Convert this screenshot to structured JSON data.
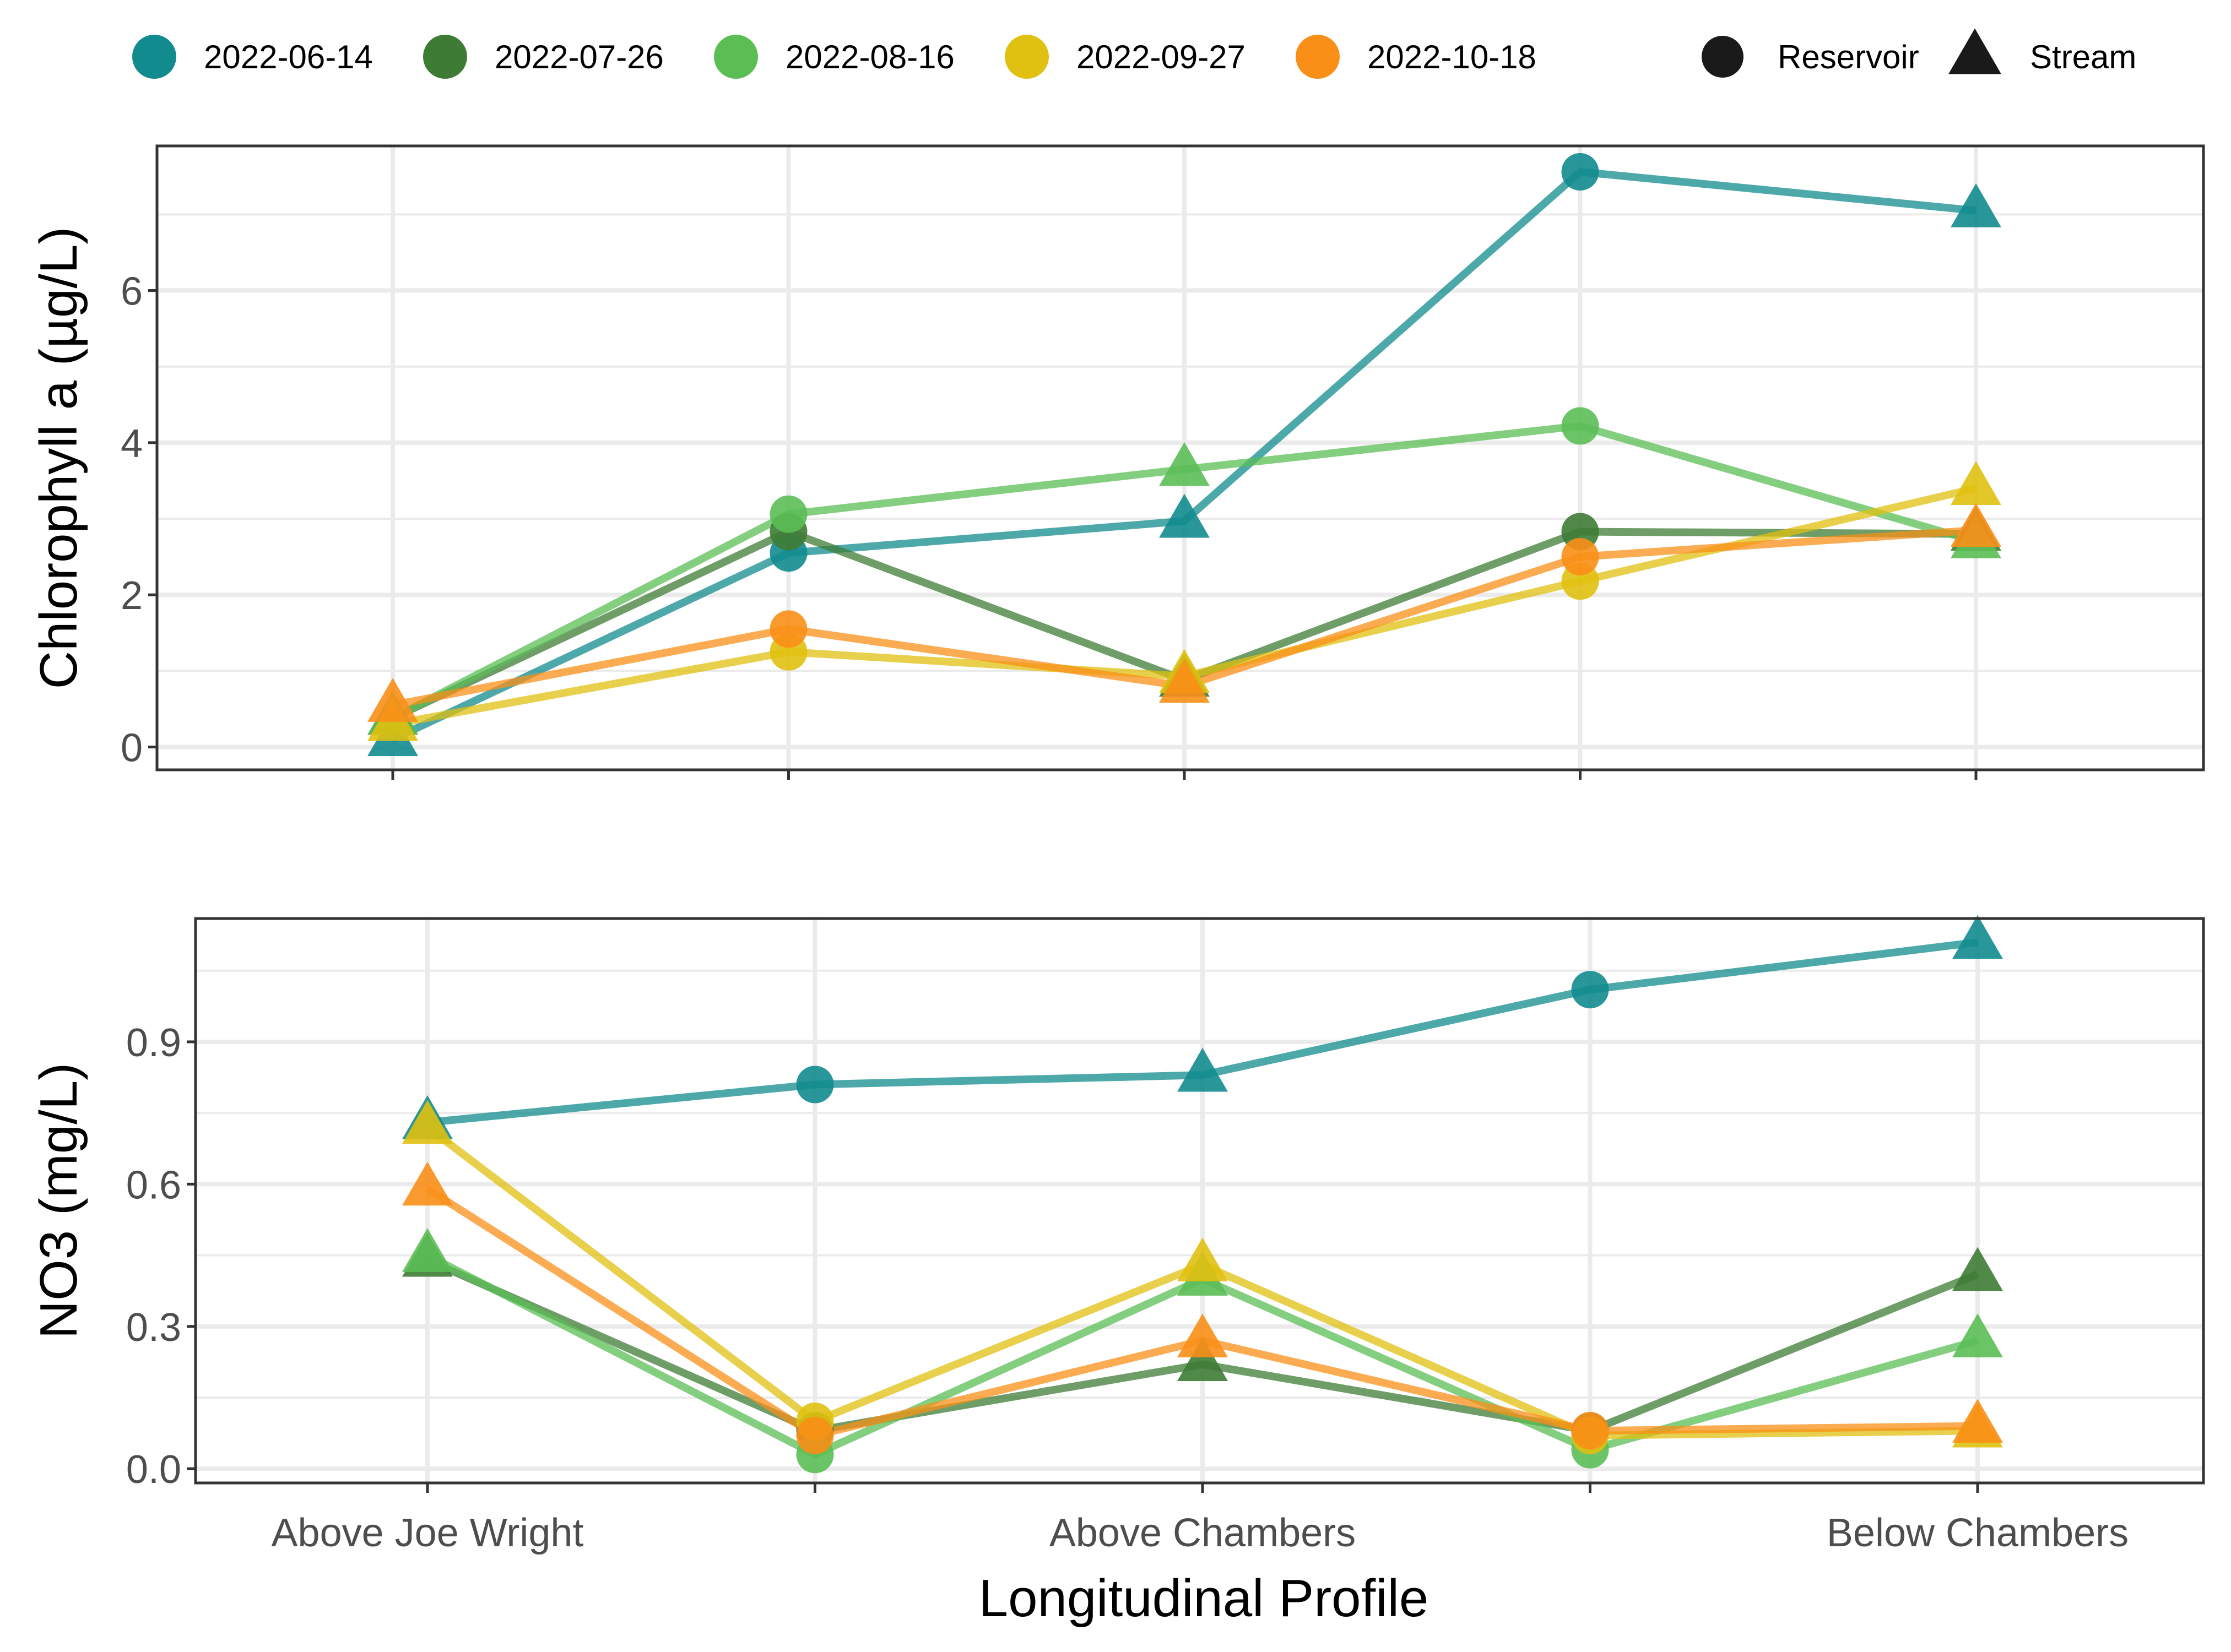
{
  "legend": {
    "dates": [
      {
        "label": "2022-06-14",
        "color": "#128B8E"
      },
      {
        "label": "2022-07-26",
        "color": "#3E7C35"
      },
      {
        "label": "2022-08-16",
        "color": "#5BBE55"
      },
      {
        "label": "2022-09-27",
        "color": "#E0C010"
      },
      {
        "label": "2022-10-18",
        "color": "#FA8F17"
      }
    ],
    "shapes": [
      {
        "label": "Reservoir",
        "shape": "circle"
      },
      {
        "label": "Stream",
        "shape": "triangle"
      }
    ]
  },
  "chart_data": [
    {
      "type": "line",
      "ylabel": "Chlorophyll a (µg/L)",
      "ylim": [
        -0.3,
        7.9
      ],
      "yticks": [
        0,
        2,
        4,
        6
      ],
      "ytick_labels": [
        "0",
        "2",
        "4",
        "6"
      ],
      "grid": true,
      "x_positions": 5,
      "point_shapes": [
        "triangle",
        "circle",
        "triangle",
        "circle",
        "triangle"
      ],
      "series": [
        {
          "name": "2022-06-14",
          "color": "#128B8E",
          "values": [
            0.1,
            2.55,
            2.97,
            7.56,
            7.05
          ]
        },
        {
          "name": "2022-07-26",
          "color": "#3E7C35",
          "values": [
            0.38,
            2.83,
            0.88,
            2.83,
            2.8
          ]
        },
        {
          "name": "2022-08-16",
          "color": "#5BBE55",
          "values": [
            0.38,
            3.06,
            3.65,
            4.22,
            2.7
          ]
        },
        {
          "name": "2022-09-27",
          "color": "#E0C010",
          "values": [
            0.3,
            1.25,
            0.93,
            2.18,
            3.4
          ]
        },
        {
          "name": "2022-10-18",
          "color": "#FA8F17",
          "values": [
            0.55,
            1.55,
            0.8,
            2.5,
            2.85
          ]
        }
      ]
    },
    {
      "type": "line",
      "ylabel": "NO3 (mg/L)",
      "xlabel": "Longitudinal Profile",
      "ylim": [
        -0.03,
        1.16
      ],
      "yticks": [
        0.0,
        0.3,
        0.6,
        0.9
      ],
      "ytick_labels": [
        "0.0",
        "0.3",
        "0.6",
        "0.9"
      ],
      "grid": true,
      "x_positions": 5,
      "x_tick_labels": [
        "Above Joe Wright",
        "",
        "Above Chambers",
        "",
        "Below Chambers"
      ],
      "point_shapes": [
        "triangle",
        "circle",
        "triangle",
        "circle",
        "triangle"
      ],
      "series": [
        {
          "name": "2022-06-14",
          "color": "#128B8E",
          "values": [
            0.73,
            0.81,
            0.83,
            1.01,
            1.11
          ]
        },
        {
          "name": "2022-07-26",
          "color": "#3E7C35",
          "values": [
            0.44,
            0.08,
            0.22,
            0.08,
            0.41
          ]
        },
        {
          "name": "2022-08-16",
          "color": "#5BBE55",
          "values": [
            0.45,
            0.03,
            0.4,
            0.04,
            0.27
          ]
        },
        {
          "name": "2022-09-27",
          "color": "#E0C010",
          "values": [
            0.72,
            0.1,
            0.43,
            0.07,
            0.08
          ]
        },
        {
          "name": "2022-10-18",
          "color": "#FA8F17",
          "values": [
            0.59,
            0.07,
            0.27,
            0.08,
            0.09
          ]
        }
      ]
    }
  ]
}
